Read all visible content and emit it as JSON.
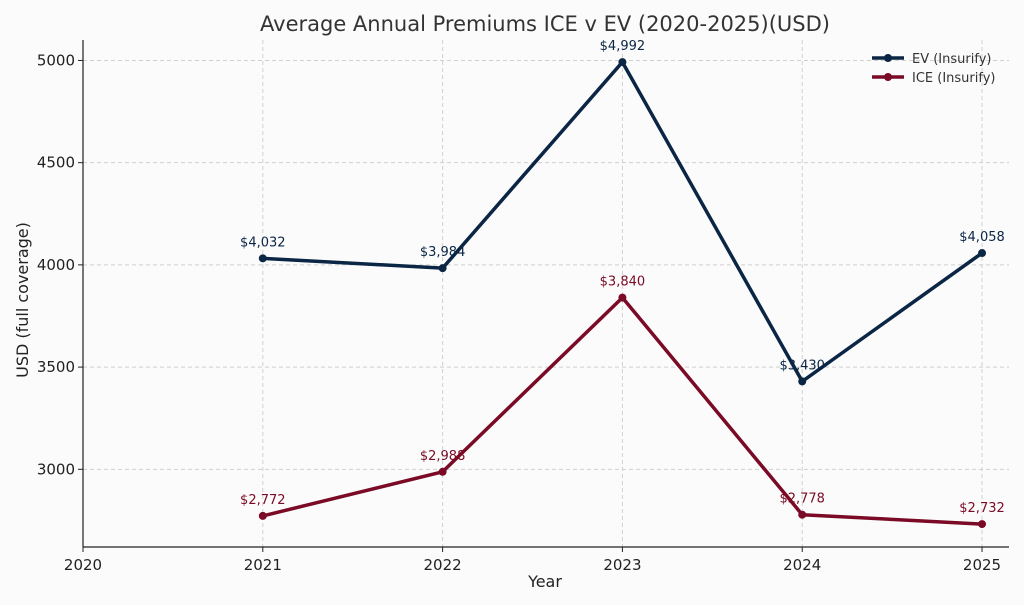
{
  "chart_data": {
    "type": "line",
    "title": "Average Annual Premiums ICE v EV (2020-2025)(USD)",
    "xlabel": "Year",
    "ylabel": "USD (full coverage)",
    "xlim": [
      2020,
      2025.15
    ],
    "ylim": [
      2620,
      5100
    ],
    "x_ticks": [
      2020,
      2021,
      2022,
      2023,
      2024,
      2025
    ],
    "y_ticks": [
      3000,
      3500,
      4000,
      4500,
      5000
    ],
    "grid": true,
    "legend_position": "top-right",
    "x": [
      2021,
      2022,
      2023,
      2024,
      2025
    ],
    "series": [
      {
        "name": "EV (Insurify)",
        "color": "#0b2545",
        "values": [
          4032,
          3984,
          4992,
          3430,
          4058
        ],
        "labels": [
          "$4,032",
          "$3,984",
          "$4,992",
          "$3,430",
          "$4,058"
        ]
      },
      {
        "name": "ICE (Insurify)",
        "color": "#7a0a25",
        "values": [
          2772,
          2988,
          3840,
          2778,
          2732
        ],
        "labels": [
          "$2,772",
          "$2,988",
          "$3,840",
          "$2,778",
          "$2,732"
        ]
      }
    ]
  }
}
